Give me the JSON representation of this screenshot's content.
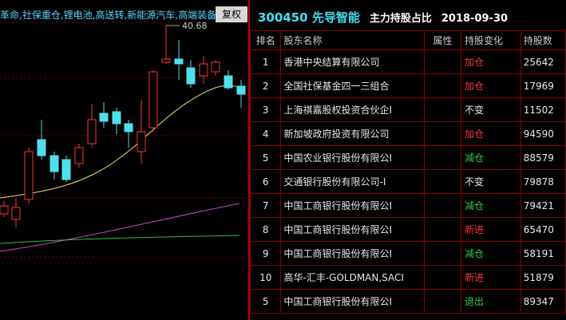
{
  "chart_panel": {
    "concepts": "革命,社保重仓,锂电池,高送转,新能源汽车,高端装备",
    "button": "复权",
    "high_label": "40.68"
  },
  "header": {
    "code_name": "300450 先导智能",
    "title": "主力持股占比",
    "date": "2018-09-30"
  },
  "table": {
    "columns": [
      "排名",
      "股东名称",
      "属性",
      "持股变化",
      "持股数"
    ],
    "rows": [
      {
        "rank": "1",
        "name": "香港中央结算有限公司",
        "change": "加仓",
        "change_color": "#ff3434",
        "shares": "25642"
      },
      {
        "rank": "2",
        "name": "全国社保基金四一三组合",
        "change": "加仓",
        "change_color": "#ff3434",
        "shares": "17969"
      },
      {
        "rank": "3",
        "name": "上海祺嘉股权投资合伙企I",
        "change": "不变",
        "change_color": "#e8e8e8",
        "shares": "11502"
      },
      {
        "rank": "4",
        "name": "新加坡政府投资有限公司",
        "change": "加仓",
        "change_color": "#ff3434",
        "shares": "94590"
      },
      {
        "rank": "5",
        "name": "中国农业银行股份有限公I",
        "change": "减仓",
        "change_color": "#2fcf3a",
        "shares": "88579"
      },
      {
        "rank": "6",
        "name": "交通银行股份有限公司-I",
        "change": "不变",
        "change_color": "#e8e8e8",
        "shares": "79878"
      },
      {
        "rank": "7",
        "name": "中国工商银行股份有限公I",
        "change": "减仓",
        "change_color": "#2fcf3a",
        "shares": "79421"
      },
      {
        "rank": "8",
        "name": "中国工商银行股份有限公I",
        "change": "新进",
        "change_color": "#ff3434",
        "shares": "65470"
      },
      {
        "rank": "9",
        "name": "中国工商银行股份有限公I",
        "change": "减仓",
        "change_color": "#2fcf3a",
        "shares": "58191"
      },
      {
        "rank": "10",
        "name": "高华-汇丰-GOLDMAN,SACI",
        "change": "新进",
        "change_color": "#ff3434",
        "shares": "51879"
      },
      {
        "rank": "5",
        "name": "中国工商银行股份有限公I",
        "change": "退出",
        "change_color": "#2fcf3a",
        "shares": "89347"
      }
    ]
  }
}
